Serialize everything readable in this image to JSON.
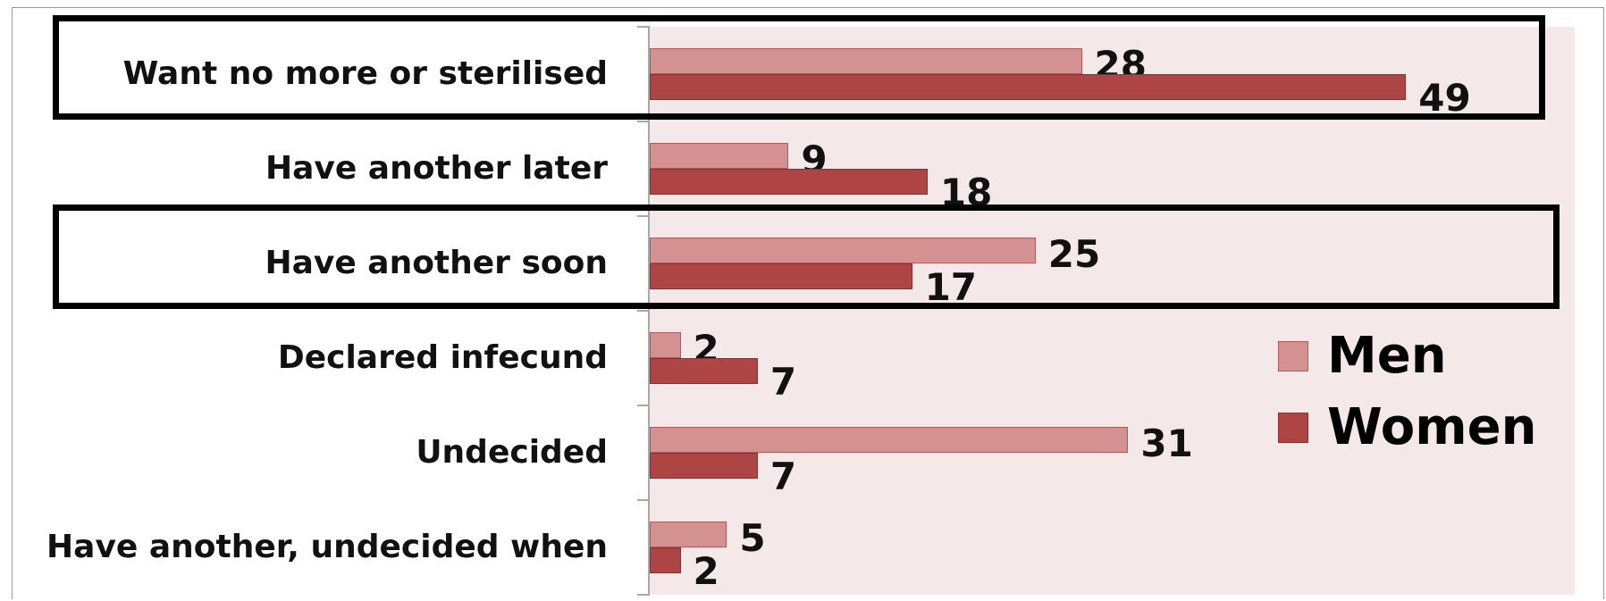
{
  "chart_data": {
    "type": "bar",
    "orientation": "horizontal",
    "categories": [
      "Want no more or sterilised",
      "Have another later",
      "Have another soon",
      "Declared infecund",
      "Undecided",
      "Have another, undecided when"
    ],
    "series": [
      {
        "name": "Men",
        "values": [
          28,
          9,
          25,
          2,
          31,
          5
        ],
        "color": "#d49191"
      },
      {
        "name": "Women",
        "values": [
          49,
          18,
          17,
          7,
          7,
          2
        ],
        "color": "#ad4545"
      }
    ],
    "xlim": [
      0,
      60
    ],
    "legend": "right",
    "grid": false,
    "highlighted_categories": [
      "Want no more or sterilised",
      "Have another soon"
    ]
  }
}
